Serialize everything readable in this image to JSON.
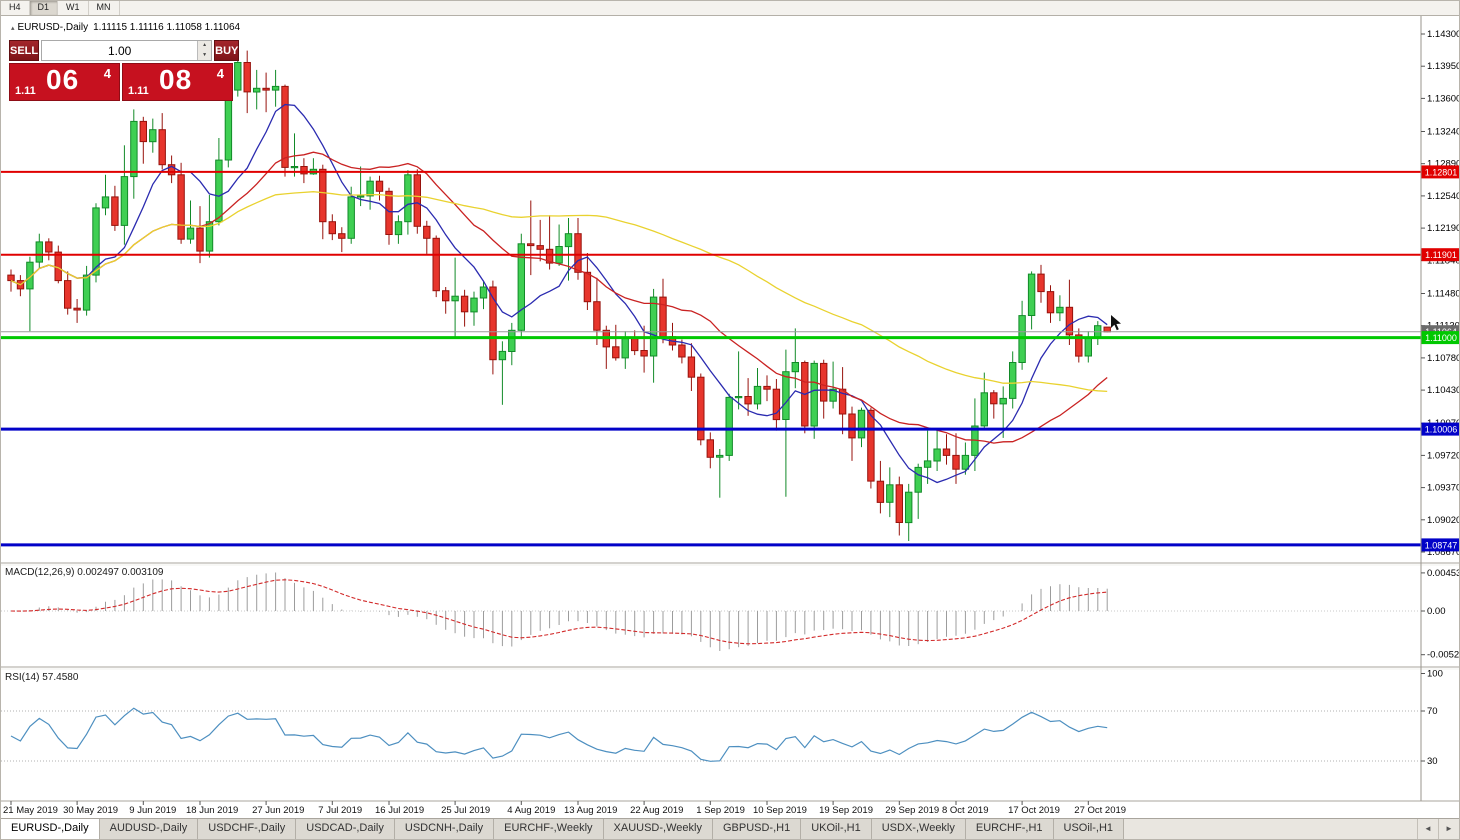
{
  "window": {
    "timeframes": [
      "H4",
      "D1",
      "W1",
      "MN"
    ],
    "active_timeframe": "D1"
  },
  "chart_header": {
    "collapse_icon": "▴",
    "symbol": "EURUSD-,Daily",
    "ohlc": "1.11115 1.11116 1.11058 1.11064"
  },
  "trade_panel": {
    "sell_label": "SELL",
    "buy_label": "BUY",
    "lot": "1.00",
    "spinner_up_icon": "▲",
    "spinner_down_icon": "▼",
    "sell_price": {
      "prefix": "1.11",
      "big": "06",
      "sup": "4"
    },
    "buy_price": {
      "prefix": "1.11",
      "big": "08",
      "sup": "4"
    },
    "colors": {
      "button": "#8e1b20",
      "price_box": "#c6111f"
    }
  },
  "chart_data": {
    "type": "candlestick",
    "symbol": "EURUSD",
    "period": "Daily",
    "up_color": "#3fcf53",
    "up_stroke": "#128a28",
    "down_color": "#e7352c",
    "down_stroke": "#97120c",
    "candles": [
      [
        1.1168,
        1.1174,
        1.115,
        1.1162
      ],
      [
        1.1162,
        1.1168,
        1.1145,
        1.1153
      ],
      [
        1.1153,
        1.1188,
        1.1107,
        1.1182
      ],
      [
        1.1182,
        1.1213,
        1.1175,
        1.1204
      ],
      [
        1.1204,
        1.1208,
        1.1184,
        1.1193
      ],
      [
        1.1193,
        1.12,
        1.1159,
        1.1162
      ],
      [
        1.1162,
        1.1172,
        1.1125,
        1.1132
      ],
      [
        1.1132,
        1.1142,
        1.1116,
        1.113
      ],
      [
        1.113,
        1.1178,
        1.1124,
        1.1168
      ],
      [
        1.1168,
        1.1246,
        1.116,
        1.1241
      ],
      [
        1.1241,
        1.1277,
        1.1233,
        1.1253
      ],
      [
        1.1253,
        1.1265,
        1.1216,
        1.1222
      ],
      [
        1.1222,
        1.1309,
        1.1201,
        1.1275
      ],
      [
        1.1275,
        1.1348,
        1.1251,
        1.1335
      ],
      [
        1.1335,
        1.134,
        1.1289,
        1.1313
      ],
      [
        1.1313,
        1.1338,
        1.1301,
        1.1326
      ],
      [
        1.1326,
        1.1344,
        1.1283,
        1.1288
      ],
      [
        1.1288,
        1.1298,
        1.1268,
        1.1277
      ],
      [
        1.1277,
        1.129,
        1.1202,
        1.1207
      ],
      [
        1.1207,
        1.1249,
        1.1202,
        1.1219
      ],
      [
        1.1219,
        1.1243,
        1.1181,
        1.1194
      ],
      [
        1.1194,
        1.1255,
        1.1187,
        1.1226
      ],
      [
        1.1226,
        1.1317,
        1.1222,
        1.1293
      ],
      [
        1.1293,
        1.1378,
        1.1285,
        1.1369
      ],
      [
        1.1369,
        1.1406,
        1.1362,
        1.1399
      ],
      [
        1.1399,
        1.1412,
        1.1344,
        1.1367
      ],
      [
        1.1367,
        1.1391,
        1.1348,
        1.1371
      ],
      [
        1.1371,
        1.1388,
        1.1345,
        1.1369
      ],
      [
        1.1369,
        1.1391,
        1.1351,
        1.1373
      ],
      [
        1.1373,
        1.1375,
        1.1275,
        1.1285
      ],
      [
        1.1285,
        1.1322,
        1.1275,
        1.1286
      ],
      [
        1.1286,
        1.1295,
        1.1268,
        1.1278
      ],
      [
        1.1278,
        1.1295,
        1.1277,
        1.1283
      ],
      [
        1.1283,
        1.1288,
        1.1207,
        1.1226
      ],
      [
        1.1226,
        1.1234,
        1.1206,
        1.1213
      ],
      [
        1.1213,
        1.122,
        1.1193,
        1.1208
      ],
      [
        1.1208,
        1.1264,
        1.1202,
        1.1253
      ],
      [
        1.1253,
        1.1286,
        1.1243,
        1.1254
      ],
      [
        1.1254,
        1.1275,
        1.1239,
        1.127
      ],
      [
        1.127,
        1.1276,
        1.1249,
        1.1259
      ],
      [
        1.1259,
        1.1263,
        1.1201,
        1.1212
      ],
      [
        1.1212,
        1.1233,
        1.1202,
        1.1226
      ],
      [
        1.1226,
        1.1282,
        1.1212,
        1.1277
      ],
      [
        1.1277,
        1.1283,
        1.1213,
        1.1221
      ],
      [
        1.1221,
        1.1227,
        1.1191,
        1.1208
      ],
      [
        1.1208,
        1.1211,
        1.1144,
        1.1151
      ],
      [
        1.1151,
        1.1155,
        1.1126,
        1.114
      ],
      [
        1.114,
        1.1187,
        1.1101,
        1.1145
      ],
      [
        1.1145,
        1.1152,
        1.1112,
        1.1128
      ],
      [
        1.1128,
        1.115,
        1.1113,
        1.1143
      ],
      [
        1.1143,
        1.1162,
        1.1131,
        1.1155
      ],
      [
        1.1155,
        1.1162,
        1.106,
        1.1076
      ],
      [
        1.1076,
        1.1096,
        1.1027,
        1.1085
      ],
      [
        1.1085,
        1.1116,
        1.107,
        1.1108
      ],
      [
        1.1108,
        1.1213,
        1.1101,
        1.1202
      ],
      [
        1.1202,
        1.1249,
        1.1168,
        1.12
      ],
      [
        1.12,
        1.1228,
        1.1183,
        1.1196
      ],
      [
        1.1196,
        1.1233,
        1.1174,
        1.1181
      ],
      [
        1.1181,
        1.1223,
        1.1178,
        1.1199
      ],
      [
        1.1199,
        1.123,
        1.1162,
        1.1213
      ],
      [
        1.1213,
        1.123,
        1.1163,
        1.1171
      ],
      [
        1.1171,
        1.1192,
        1.113,
        1.1139
      ],
      [
        1.1139,
        1.1165,
        1.1092,
        1.1108
      ],
      [
        1.1108,
        1.1113,
        1.1066,
        1.109
      ],
      [
        1.109,
        1.1114,
        1.1075,
        1.1078
      ],
      [
        1.1078,
        1.1107,
        1.1066,
        1.1099
      ],
      [
        1.1099,
        1.1108,
        1.1081,
        1.1086
      ],
      [
        1.1086,
        1.1113,
        1.1062,
        1.108
      ],
      [
        1.108,
        1.1153,
        1.1051,
        1.1144
      ],
      [
        1.1144,
        1.1164,
        1.1094,
        1.1101
      ],
      [
        1.1101,
        1.1116,
        1.1086,
        1.1092
      ],
      [
        1.1092,
        1.1098,
        1.1072,
        1.1079
      ],
      [
        1.1079,
        1.1094,
        1.1042,
        1.1057
      ],
      [
        1.1057,
        1.1061,
        1.0983,
        1.0989
      ],
      [
        1.0989,
        1.0997,
        1.0958,
        1.097
      ],
      [
        1.097,
        1.0979,
        1.0926,
        1.0972
      ],
      [
        1.0972,
        1.1039,
        1.0966,
        1.1035
      ],
      [
        1.1035,
        1.1085,
        1.1022,
        1.1036
      ],
      [
        1.1036,
        1.1056,
        1.1015,
        1.1028
      ],
      [
        1.1028,
        1.1067,
        1.1022,
        1.1047
      ],
      [
        1.1047,
        1.1059,
        1.1031,
        1.1044
      ],
      [
        1.1044,
        1.1055,
        1.0999,
        1.1011
      ],
      [
        1.1011,
        1.1087,
        1.0927,
        1.1063
      ],
      [
        1.1063,
        1.111,
        1.1045,
        1.1073
      ],
      [
        1.1073,
        1.1075,
        1.0996,
        1.1004
      ],
      [
        1.1004,
        1.1075,
        1.099,
        1.1072
      ],
      [
        1.1072,
        1.1076,
        1.1012,
        1.1031
      ],
      [
        1.1031,
        1.1074,
        1.1023,
        1.1044
      ],
      [
        1.1044,
        1.1068,
        1.0995,
        1.1017
      ],
      [
        1.1017,
        1.1025,
        1.0966,
        1.0991
      ],
      [
        1.0991,
        1.1024,
        1.0981,
        1.1021
      ],
      [
        1.1021,
        1.1024,
        1.0936,
        1.0944
      ],
      [
        1.0944,
        1.0966,
        1.0909,
        1.0921
      ],
      [
        1.0921,
        1.0959,
        1.0905,
        1.094
      ],
      [
        1.094,
        1.0949,
        1.0885,
        1.0899
      ],
      [
        1.0899,
        1.0941,
        1.0879,
        1.0932
      ],
      [
        1.0932,
        1.0963,
        1.0903,
        1.0959
      ],
      [
        1.0959,
        1.0999,
        1.0941,
        1.0966
      ],
      [
        1.0966,
        1.0999,
        1.0955,
        1.0979
      ],
      [
        1.0979,
        1.0995,
        1.0962,
        1.0972
      ],
      [
        1.0972,
        1.0996,
        1.0941,
        1.0957
      ],
      [
        1.0957,
        1.0986,
        1.0951,
        1.0972
      ],
      [
        1.0972,
        1.1034,
        1.0955,
        1.1004
      ],
      [
        1.1004,
        1.1062,
        1.1002,
        1.104
      ],
      [
        1.104,
        1.1043,
        1.1012,
        1.1028
      ],
      [
        1.1028,
        1.1047,
        1.0991,
        1.1034
      ],
      [
        1.1034,
        1.1085,
        1.1023,
        1.1073
      ],
      [
        1.1073,
        1.114,
        1.1065,
        1.1124
      ],
      [
        1.1124,
        1.1172,
        1.1109,
        1.1169
      ],
      [
        1.1169,
        1.1179,
        1.1138,
        1.115
      ],
      [
        1.115,
        1.1157,
        1.1116,
        1.1127
      ],
      [
        1.1127,
        1.1146,
        1.1118,
        1.1133
      ],
      [
        1.1133,
        1.1163,
        1.1092,
        1.1103
      ],
      [
        1.1103,
        1.111,
        1.1073,
        1.108
      ],
      [
        1.108,
        1.1107,
        1.1073,
        1.11
      ],
      [
        1.11,
        1.1118,
        1.1092,
        1.1113
      ],
      [
        1.11115,
        1.11116,
        1.11058,
        1.11064
      ]
    ],
    "ma_overlays": [
      {
        "name": "ma-fast",
        "period": 8,
        "color": "#2b2bb0"
      },
      {
        "name": "ma-mid",
        "period": 21,
        "color": "#c92222"
      },
      {
        "name": "ma-slow",
        "period": 55,
        "color": "#e9d22f"
      }
    ],
    "levels": [
      {
        "price": 1.12801,
        "label": "1.12801",
        "color": "#e00000",
        "width": 2
      },
      {
        "price": 1.11901,
        "label": "1.11901",
        "color": "#e00000",
        "width": 2
      },
      {
        "price": 1.11,
        "label": "1.11000",
        "color": "#00c800",
        "width": 3
      },
      {
        "price": 1.10006,
        "label": "1.10006",
        "color": "#0202c8",
        "width": 3
      },
      {
        "price": 1.08747,
        "label": "1.08747",
        "color": "#0202c8",
        "width": 3
      }
    ],
    "bid": {
      "price": 1.11064,
      "label": "1.11064",
      "color": "#6b6b6b"
    },
    "y_ticks": [
      "1.14300",
      "1.13950",
      "1.13600",
      "1.13240",
      "1.12890",
      "1.12540",
      "1.12190",
      "1.11840",
      "1.11480",
      "1.11130",
      "1.10780",
      "1.10430",
      "1.10070",
      "1.09720",
      "1.09370",
      "1.09020",
      "1.08670"
    ],
    "x_labels": [
      {
        "t": "21 May 2019",
        "i": 0
      },
      {
        "t": "30 May 2019",
        "i": 7
      },
      {
        "t": "9 Jun 2019",
        "i": 14
      },
      {
        "t": "18 Jun 2019",
        "i": 20
      },
      {
        "t": "27 Jun 2019",
        "i": 27
      },
      {
        "t": "7 Jul 2019",
        "i": 34
      },
      {
        "t": "16 Jul 2019",
        "i": 40
      },
      {
        "t": "25 Jul 2019",
        "i": 47
      },
      {
        "t": "4 Aug 2019",
        "i": 54
      },
      {
        "t": "13 Aug 2019",
        "i": 60
      },
      {
        "t": "22 Aug 2019",
        "i": 67
      },
      {
        "t": "1 Sep 2019",
        "i": 74
      },
      {
        "t": "10 Sep 2019",
        "i": 80
      },
      {
        "t": "19 Sep 2019",
        "i": 87
      },
      {
        "t": "29 Sep 2019",
        "i": 94
      },
      {
        "t": "8 Oct 2019",
        "i": 100
      },
      {
        "t": "17 Oct 2019",
        "i": 107
      },
      {
        "t": "27 Oct 2019",
        "i": 114
      }
    ]
  },
  "indicators": {
    "macd": {
      "label": "MACD(12,26,9)",
      "values": "0.002497 0.003109",
      "fast": 12,
      "slow": 26,
      "signal": 9,
      "scale": [
        "0.004536",
        "0.00",
        "-0.005205"
      ],
      "histogram_color": "#9c9c9c",
      "signal_color": "#d22a2a"
    },
    "rsi": {
      "label": "RSI(14)",
      "value": "57.4580",
      "period": 14,
      "scale": [
        "100",
        "70",
        "30"
      ],
      "levels": [
        70,
        30
      ],
      "line_color": "#4d8fc0"
    }
  },
  "tabs": {
    "prev_icon": "◄",
    "next_icon": "►",
    "items": [
      {
        "label": "EURUSD-,Daily",
        "active": true
      },
      {
        "label": "AUDUSD-,Daily"
      },
      {
        "label": "USDCHF-,Daily"
      },
      {
        "label": "USDCAD-,Daily"
      },
      {
        "label": "USDCNH-,Daily"
      },
      {
        "label": "EURCHF-,Weekly"
      },
      {
        "label": "XAUUSD-,Weekly"
      },
      {
        "label": "GBPUSD-,H1"
      },
      {
        "label": "UKOil-,H1"
      },
      {
        "label": "USDX-,Weekly"
      },
      {
        "label": "EURCHF-,H1"
      },
      {
        "label": "USOil-,H1"
      }
    ]
  }
}
